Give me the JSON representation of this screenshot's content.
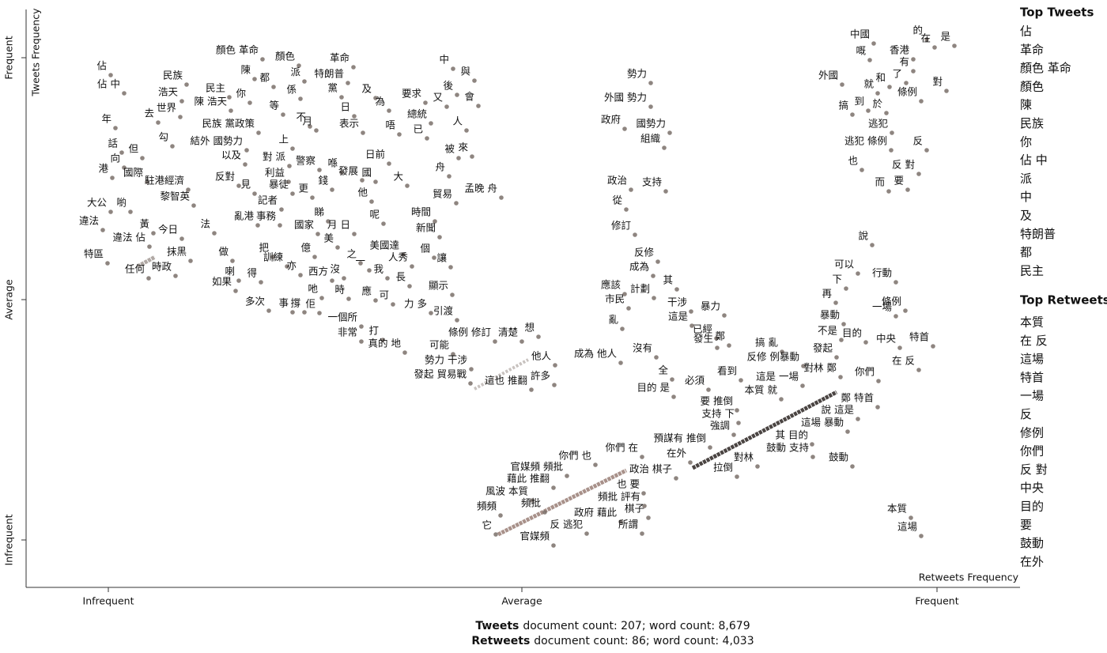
{
  "chart_data": {
    "type": "scatter",
    "x_label": "Retweets Frequency",
    "y_label": "Tweets Frequency",
    "xlim": [
      0,
      1257
    ],
    "ylim": [
      0,
      731
    ],
    "xticks": [
      {
        "value": 104,
        "label": "Infrequent"
      },
      {
        "value": 627,
        "label": "Average"
      },
      {
        "value": 1152,
        "label": "Frequent"
      }
    ],
    "yticks": [
      {
        "value": 60,
        "label": "Infrequent"
      },
      {
        "value": 364,
        "label": "Average"
      },
      {
        "value": 670,
        "label": "Frequent"
      }
    ],
    "color": "#7a706a",
    "labels": [
      "佔",
      "佔 中",
      "民族",
      "浩天",
      "世界",
      "去",
      "顏色 革命",
      "顏色",
      "陳",
      "都",
      "派",
      "革命",
      "特朗普",
      "黨",
      "係",
      "及",
      "民主",
      "你",
      "陳 浩天",
      "等",
      "日",
      "為",
      "要求",
      "又",
      "中",
      "與",
      "後",
      "會",
      "年",
      "話",
      "但",
      "勾",
      "民族 黨政策",
      "不",
      "月",
      "表示",
      "唔",
      "總統",
      "已",
      "人",
      "結外 國勢力",
      "上",
      "向",
      "以及",
      "對 派",
      "被",
      "來",
      "港",
      "國際",
      "駐港經濟",
      "警察",
      "喺",
      "發展",
      "日前",
      "舟",
      "反對",
      "見",
      "利益",
      "錢",
      "國",
      "大",
      "孟晚 舟",
      "黎智英",
      "暴徒",
      "更",
      "大公",
      "喲",
      "記者",
      "他",
      "貿易",
      "違法",
      "黃",
      "睇",
      "呢",
      "時間",
      "法",
      "亂港",
      "事務",
      "今日",
      "國家",
      "月 日",
      "新聞",
      "違法 佔",
      "美",
      "把",
      "做",
      "億",
      "之",
      "一",
      "美國達",
      "個",
      "抹黑",
      "特區",
      "訓練",
      "人秀",
      "讓",
      "任何",
      "時政",
      "亦",
      "沒",
      "西方",
      "我",
      "長",
      "喇",
      "得",
      "如果",
      "顯示",
      "吔",
      "時",
      "應",
      "可",
      "多次",
      "事",
      "撐",
      "佢",
      "力 多",
      "引渡",
      "一個所",
      "打",
      "非常",
      "條例 修訂",
      "清楚",
      "想",
      "真的 地",
      "可能",
      "他人",
      "勢力 干涉",
      "發起 貿易戰",
      "這也 推翻",
      "許多",
      "勢力",
      "外國 勢力",
      "政府",
      "國勢力",
      "組織",
      "政治",
      "支持",
      "從",
      "修訂",
      "反修",
      "成為",
      "其",
      "應該",
      "計劃",
      "市民",
      "干涉",
      "暴力",
      "這是",
      "亂",
      "已經",
      "發生",
      "鄭",
      "搞 亂",
      "沒有",
      "成為 他人",
      "反修 例暴動",
      "看到",
      "全",
      "必須",
      "目的 是",
      "這是 一場",
      "本質 就",
      "對林 鄭",
      "要 推倒",
      "支持 下",
      "強調",
      "預謀有 推倒",
      "其 目的",
      "鄭 特首",
      "說 這是",
      "這場 暴動",
      "在外",
      "鼓動 支持",
      "對林",
      "拉倒",
      "鼓動",
      "你們 也",
      "你們 在",
      "政治 棋子",
      "官媒頻 頻批",
      "藉此 推翻",
      "也 要",
      "頻批 評有",
      "風波 本質",
      "頻批",
      "政府 藉此",
      "棋子",
      "頻頻",
      "所謂",
      "它",
      "反 逃犯",
      "官媒頻",
      "中國",
      "的",
      "在",
      "是",
      "香港",
      "嘅",
      "有",
      "外國",
      "就",
      "和",
      "了",
      "對",
      "條例",
      "搞",
      "到",
      "於",
      "逃犯",
      "反",
      "逃犯 條例",
      "也",
      "反 對",
      "而",
      "要",
      "說",
      "可以",
      "下",
      "行動",
      "再",
      "條例",
      "一場",
      "暴動",
      "不是",
      "目的",
      "中央",
      "特首",
      "發起",
      "你們",
      "在 反",
      "本質",
      "這場"
    ],
    "x": [
      107,
      124,
      203,
      197,
      195,
      167,
      299,
      345,
      289,
      313,
      352,
      414,
      407,
      399,
      347,
      442,
      257,
      283,
      259,
      325,
      415,
      459,
      505,
      532,
      540,
      567,
      545,
      572,
      113,
      121,
      147,
      185,
      294,
      359,
      367,
      426,
      472,
      512,
      507,
      557,
      279,
      337,
      124,
      277,
      333,
      547,
      564,
      109,
      153,
      205,
      371,
      399,
      425,
      459,
      535,
      269,
      289,
      332,
      387,
      442,
      482,
      601,
      212,
      337,
      362,
      107,
      132,
      323,
      437,
      544,
      97,
      161,
      382,
      452,
      517,
      238,
      293,
      321,
      197,
      369,
      415,
      523,
      156,
      394,
      312,
      261,
      365,
      423,
      434,
      477,
      516,
      208,
      103,
      330,
      488,
      537,
      155,
      189,
      347,
      402,
      387,
      457,
      485,
      269,
      297,
      265,
      539,
      374,
      408,
      442,
      464,
      307,
      337,
      352,
      371,
      512,
      545,
      424,
      451,
      424,
      593,
      627,
      648,
      479,
      540,
      669,
      563,
      562,
      639,
      668,
      790,
      790,
      757,
      814,
      807,
      765,
      809,
      759,
      770,
      799,
      793,
      823,
      757,
      794,
      762,
      841,
      883,
      842,
      754,
      873,
      874,
      889,
      956,
      797,
      752,
      983,
      904,
      817,
      863,
      819,
      982,
      955,
      1030,
      899,
      901,
      895,
      865,
      994,
      1077,
      1052,
      1039,
      840,
      995,
      925,
      899,
      1045,
      720,
      779,
      822,
      684,
      667,
      781,
      782,
      640,
      656,
      752,
      787,
      600,
      779,
      594,
      709,
      667,
      1072,
      1139,
      1149,
      1174,
      1122,
      1067,
      1122,
      1032,
      1077,
      1092,
      1113,
      1164,
      1132,
      1045,
      1065,
      1088,
      1095,
      1139,
      1094,
      1057,
      1129,
      1091,
      1115,
      1070,
      1052,
      1037,
      1100,
      1024,
      1112,
      1100,
      1034,
      1031,
      1062,
      1105,
      1147,
      1025,
      1078,
      1129,
      1119,
      1132
    ],
    "y": [
      648,
      625,
      636,
      615,
      595,
      588,
      668,
      660,
      643,
      633,
      640,
      658,
      638,
      620,
      618,
      619,
      620,
      613,
      603,
      598,
      596,
      603,
      613,
      608,
      656,
      641,
      623,
      609,
      581,
      550,
      543,
      558,
      575,
      583,
      578,
      575,
      573,
      587,
      568,
      578,
      553,
      555,
      531,
      535,
      533,
      543,
      545,
      518,
      513,
      503,
      528,
      525,
      515,
      536,
      520,
      508,
      498,
      513,
      503,
      513,
      508,
      493,
      483,
      498,
      493,
      475,
      475,
      478,
      488,
      486,
      452,
      448,
      463,
      460,
      463,
      448,
      458,
      458,
      441,
      447,
      447,
      443,
      431,
      430,
      418,
      413,
      418,
      410,
      401,
      421,
      417,
      413,
      410,
      406,
      406,
      405,
      391,
      394,
      395,
      391,
      388,
      391,
      381,
      388,
      386,
      375,
      370,
      366,
      365,
      363,
      358,
      350,
      348,
      348,
      347,
      347,
      338,
      330,
      313,
      311,
      311,
      311,
      317,
      297,
      295,
      281,
      276,
      258,
      250,
      256,
      638,
      608,
      580,
      575,
      556,
      503,
      501,
      478,
      446,
      412,
      394,
      377,
      371,
      366,
      353,
      349,
      344,
      331,
      327,
      315,
      303,
      306,
      298,
      291,
      284,
      280,
      262,
      263,
      250,
      241,
      255,
      238,
      266,
      224,
      208,
      193,
      177,
      181,
      228,
      213,
      197,
      158,
      165,
      153,
      140,
      153,
      155,
      165,
      138,
      141,
      126,
      119,
      103,
      110,
      95,
      83,
      88,
      91,
      68,
      67,
      68,
      53,
      688,
      693,
      683,
      685,
      668,
      667,
      653,
      636,
      625,
      633,
      638,
      628,
      615,
      598,
      603,
      600,
      575,
      553,
      553,
      528,
      523,
      501,
      503,
      433,
      397,
      378,
      386,
      360,
      350,
      343,
      333,
      313,
      310,
      303,
      305,
      291,
      261,
      275,
      88,
      65
    ]
  },
  "top_tweets": {
    "title": "Top Tweets",
    "items": [
      "佔",
      "革命",
      "顏色 革命",
      "顏色",
      "陳",
      "民族",
      "你",
      "佔 中",
      "派",
      "中",
      "及",
      "特朗普",
      "都",
      "民主"
    ]
  },
  "top_retweets": {
    "title": "Top Retweets",
    "items": [
      "本質",
      "在 反",
      "這場",
      "特首",
      "一場",
      "反",
      "修例",
      "你們",
      "反 對",
      "中央",
      "目的",
      "要",
      "鼓動",
      "在外"
    ]
  },
  "footer": [
    {
      "name": "Tweets",
      "text": "document count: 207; word count: 8,679"
    },
    {
      "name": "Retweets",
      "text": "document count: 86; word count: 4,033"
    }
  ]
}
